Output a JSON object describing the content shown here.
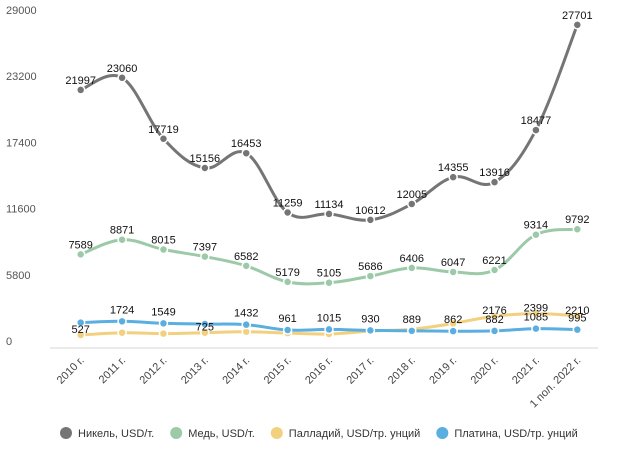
{
  "chart_data": {
    "type": "line",
    "title": "",
    "xlabel": "",
    "ylabel": "",
    "ylim": [
      0,
      29000
    ],
    "yticks": [
      0,
      5800,
      11600,
      17400,
      23200,
      29000
    ],
    "yticklabels": [
      "0",
      "5800",
      "11600",
      "17400",
      "23200",
      "29000"
    ],
    "grid": false,
    "legend_position": "bottom",
    "categories": [
      "2010 г.",
      "2011 г.",
      "2012 г.",
      "2013 г.",
      "2014 г.",
      "2015 г.",
      "2016 г.",
      "2017 г.",
      "2018 г.",
      "2019 г.",
      "2020 г.",
      "2021 г.",
      "1 пол. 2022 г."
    ],
    "series": [
      {
        "name": "Никель, USD/т.",
        "color": "#757575",
        "values": [
          21997,
          23060,
          17719,
          15156,
          16453,
          11259,
          11134,
          10612,
          12005,
          14355,
          13916,
          18477,
          27701
        ],
        "labels": [
          "21997",
          "23060",
          "17719",
          "15156",
          "16453",
          "11259",
          "11134",
          "10612",
          "12005",
          "14355",
          "13916",
          "18477",
          "27701"
        ]
      },
      {
        "name": "Медь, USD/т.",
        "color": "#9ccaa8",
        "values": [
          7589,
          8871,
          8015,
          7397,
          6582,
          5179,
          5105,
          5686,
          6406,
          6047,
          6221,
          9314,
          9792
        ],
        "labels": [
          "7589",
          "8871",
          "8015",
          "7397",
          "6582",
          "5179",
          "5105",
          "5686",
          "6406",
          "6047",
          "6221",
          "9314",
          "9792"
        ]
      },
      {
        "name": "Палладий, USD/тр. унций",
        "color": "#f2d07e",
        "values": [
          527,
          725,
          649,
          725,
          810,
          692,
          614,
          870,
          1030,
          1540,
          2176,
          2399,
          2210
        ],
        "labels": [
          "527",
          "",
          "",
          "725",
          "",
          "",
          "",
          "",
          "",
          "",
          "2176",
          "2399",
          "2210"
        ]
      },
      {
        "name": "Платина, USD/тр. унций",
        "color": "#5aaee0",
        "values": [
          1610,
          1724,
          1549,
          1487,
          1432,
          961,
          1015,
          930,
          889,
          862,
          882,
          1085,
          995
        ],
        "labels": [
          "",
          "1724",
          "1549",
          "",
          "1432",
          "961",
          "1015",
          "930",
          "889",
          "862",
          "882",
          "1085",
          "995"
        ]
      }
    ]
  }
}
